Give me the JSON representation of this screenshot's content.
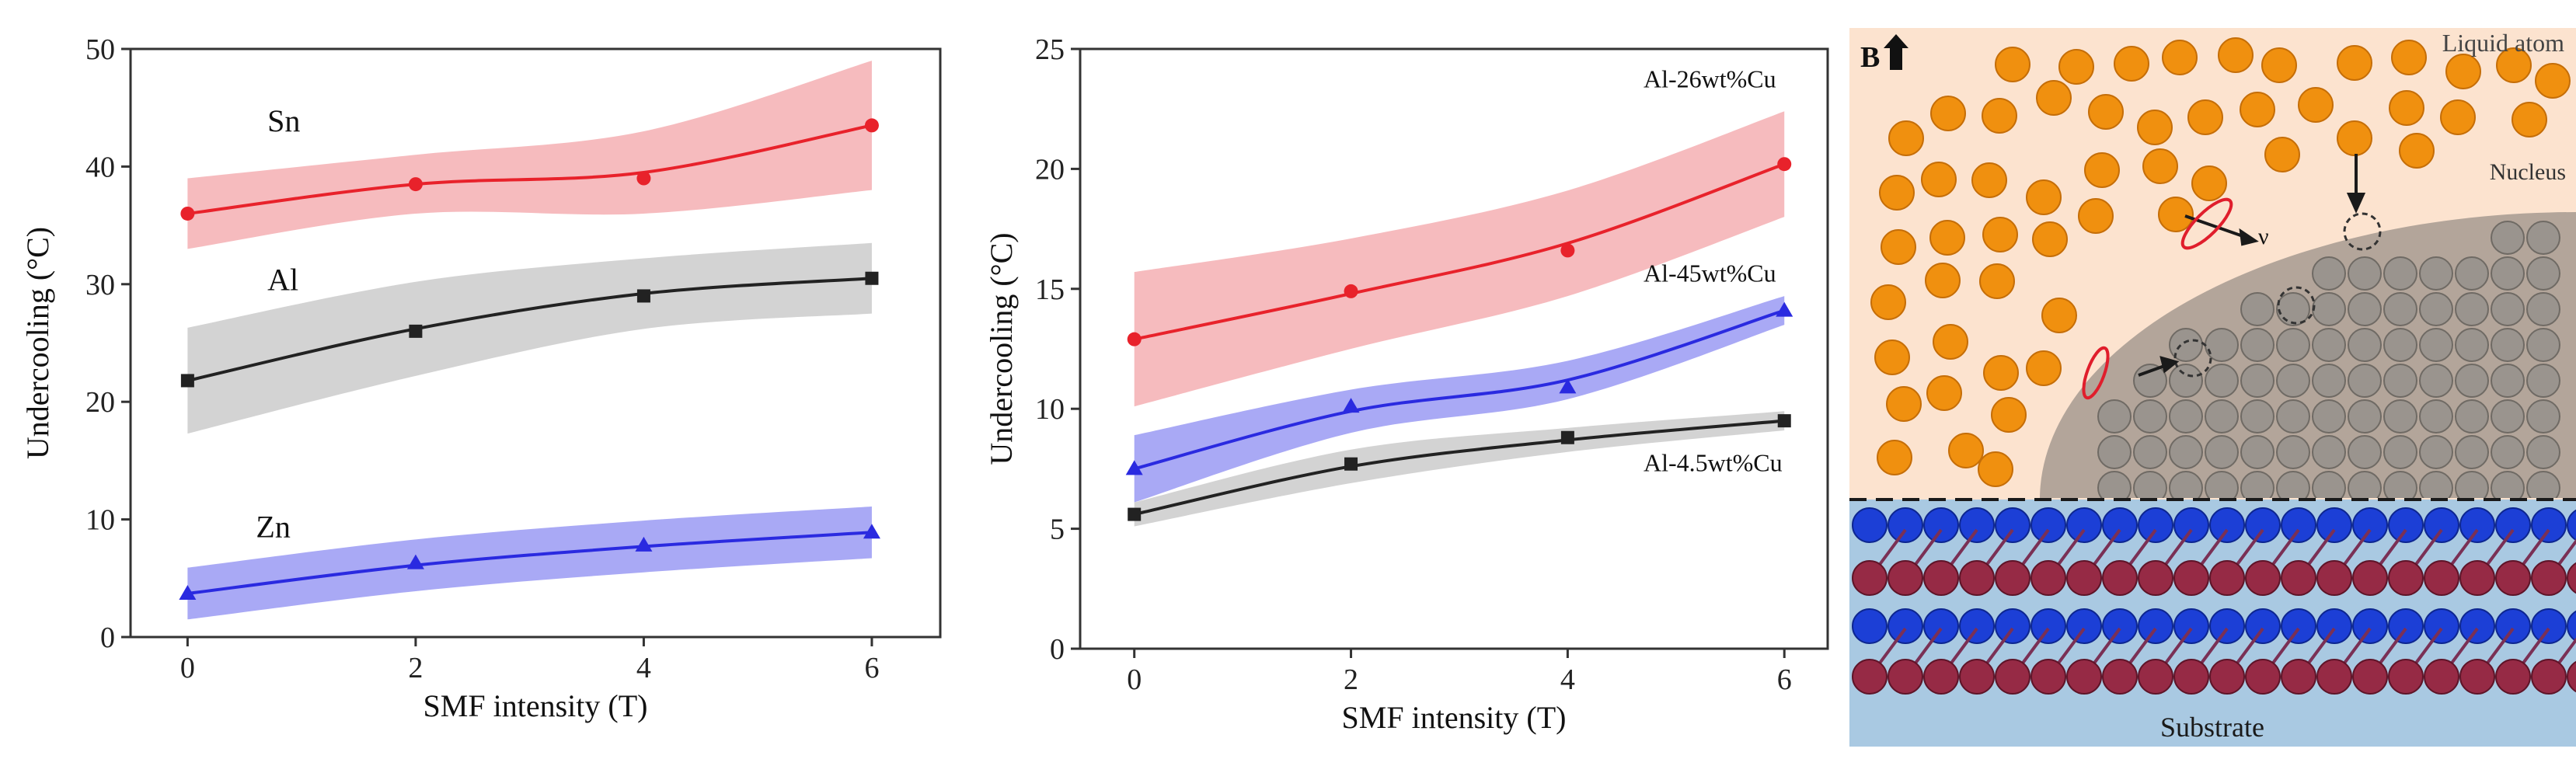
{
  "colors": {
    "red": "#e8222b",
    "black": "#222222",
    "blue": "#2a2ae0",
    "red_band": "#f3a4a8",
    "gray_band": "#c4c4c4",
    "blue_band": "#8c8cf2",
    "liquid_bg": "#fce3cf",
    "nucleus": "#b3a59a",
    "substrate_bg": "#a9c9e2",
    "orange_atom": "#f0900f",
    "gray_atom": "#9a948e",
    "blue_atom": "#1c3fd6",
    "maroon_atom": "#962a45"
  },
  "chart_data": [
    {
      "type": "line",
      "xlabel": "SMF intensity (T)",
      "ylabel": "Undercooling (°C)",
      "xlim": [
        -0.5,
        6.6
      ],
      "ylim": [
        0,
        50
      ],
      "xticks": [
        "0",
        "2",
        "4",
        "6"
      ],
      "yticks": [
        "0",
        "10",
        "20",
        "30",
        "40",
        "50"
      ],
      "grid": false,
      "x": [
        0,
        2,
        4,
        6
      ],
      "series": [
        {
          "name": "Sn",
          "marker": "circle",
          "color": "#e8222b",
          "band_color": "#f3a4a8",
          "values": [
            36,
            38.5,
            39,
            43.5
          ],
          "fit": [
            36,
            38.5,
            39.5,
            43.5
          ],
          "band_half_width": [
            3,
            2.5,
            3.5,
            5.5
          ],
          "label_x": 0.7,
          "label_y": 43
        },
        {
          "name": "Al",
          "marker": "square",
          "color": "#222222",
          "band_color": "#c4c4c4",
          "values": [
            21.8,
            26,
            29,
            30.5
          ],
          "fit": [
            21.8,
            26.2,
            29.2,
            30.5
          ],
          "band_half_width": [
            4.5,
            4,
            3,
            3
          ],
          "label_x": 0.7,
          "label_y": 29.5
        },
        {
          "name": "Zn",
          "marker": "triangle",
          "color": "#2a2ae0",
          "band_color": "#8c8cf2",
          "values": [
            3.7,
            6.3,
            7.8,
            8.9
          ],
          "fit": [
            3.7,
            6.1,
            7.7,
            8.9
          ],
          "band_half_width": [
            2.2,
            2.2,
            2.2,
            2.2
          ],
          "label_x": 0.6,
          "label_y": 8.5
        }
      ]
    },
    {
      "type": "line",
      "xlabel": "SMF intensity (T)",
      "ylabel": "Undercooling (°C)",
      "xlim": [
        -0.5,
        6.4
      ],
      "ylim": [
        0,
        25
      ],
      "xticks": [
        "0",
        "2",
        "4",
        "6"
      ],
      "yticks": [
        "0",
        "5",
        "10",
        "15",
        "20",
        "25"
      ],
      "grid": false,
      "x": [
        0,
        2,
        4,
        6
      ],
      "series": [
        {
          "name": "Al-26wt%Cu",
          "marker": "circle",
          "color": "#e8222b",
          "band_color": "#f3a4a8",
          "values": [
            12.9,
            14.9,
            16.6,
            20.2
          ],
          "fit": [
            12.9,
            14.8,
            16.9,
            20.2
          ],
          "band_half_width": [
            2.8,
            2.3,
            2.2,
            2.2
          ],
          "label_x": 4.7,
          "label_y": 23.4
        },
        {
          "name": "Al-45wt%Cu",
          "marker": "triangle",
          "color": "#2a2ae0",
          "band_color": "#8c8cf2",
          "values": [
            7.5,
            10.1,
            10.9,
            14.1
          ],
          "fit": [
            7.5,
            9.9,
            11.2,
            14.1
          ],
          "band_half_width": [
            1.4,
            0.9,
            0.8,
            0.6
          ],
          "label_x": 4.7,
          "label_y": 15.3
        },
        {
          "name": "Al-4.5wt%Cu",
          "marker": "square",
          "color": "#222222",
          "band_color": "#c4c4c4",
          "values": [
            5.6,
            7.7,
            8.8,
            9.5
          ],
          "fit": [
            5.6,
            7.6,
            8.7,
            9.5
          ],
          "band_half_width": [
            0.5,
            0.7,
            0.5,
            0.4
          ],
          "label_x": 4.7,
          "label_y": 7.4
        }
      ]
    }
  ],
  "diagram": {
    "label_b": "B",
    "liquid_atom": "Liquid atom",
    "nucleus": "Nucleus",
    "substrate": "Substrate",
    "nu": "ν"
  }
}
